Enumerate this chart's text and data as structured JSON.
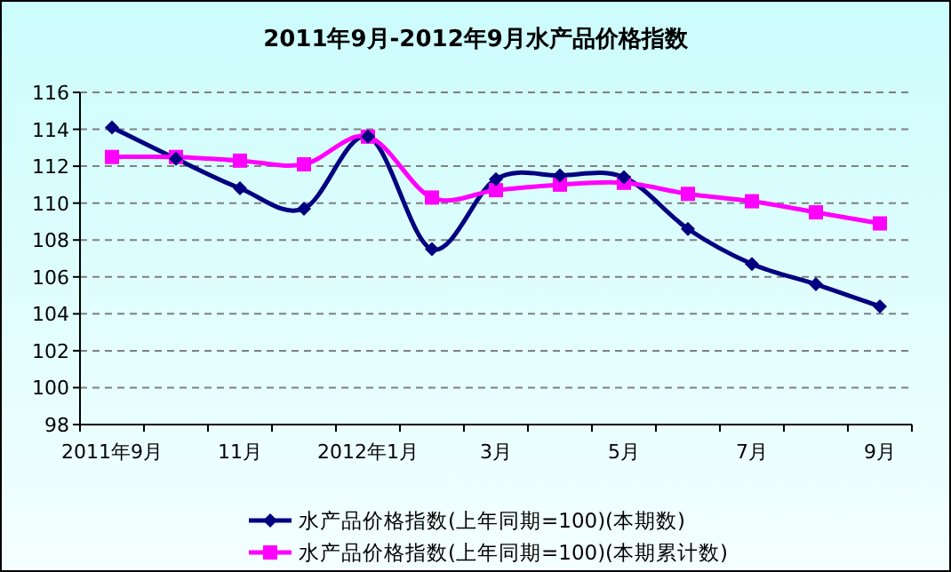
{
  "chart_data": {
    "type": "line",
    "title": "2011年9月-2012年9月水产品价格指数",
    "categories": [
      "2011年9月",
      null,
      "11月",
      null,
      "2012年1月",
      null,
      "3月",
      null,
      "5月",
      null,
      "7月",
      null,
      "9月"
    ],
    "series": [
      {
        "name": "水产品价格指数(上年同期=100)(本期数)",
        "color": "#000080",
        "marker": "diamond",
        "values": [
          114.1,
          112.4,
          110.8,
          109.7,
          113.6,
          107.5,
          111.3,
          111.5,
          111.4,
          108.6,
          106.7,
          105.6,
          104.4
        ]
      },
      {
        "name": "水产品价格指数(上年同期=100)(本期累计数)",
        "color": "#ff00ff",
        "marker": "square",
        "values": [
          112.5,
          112.5,
          112.3,
          112.1,
          113.6,
          110.3,
          110.7,
          111.0,
          111.1,
          110.5,
          110.1,
          109.5,
          108.9
        ]
      }
    ],
    "ylim": [
      98,
      116
    ],
    "yticks": [
      98,
      100,
      102,
      104,
      106,
      108,
      110,
      112,
      114,
      116
    ],
    "grid": "y",
    "legend": "bottom"
  }
}
